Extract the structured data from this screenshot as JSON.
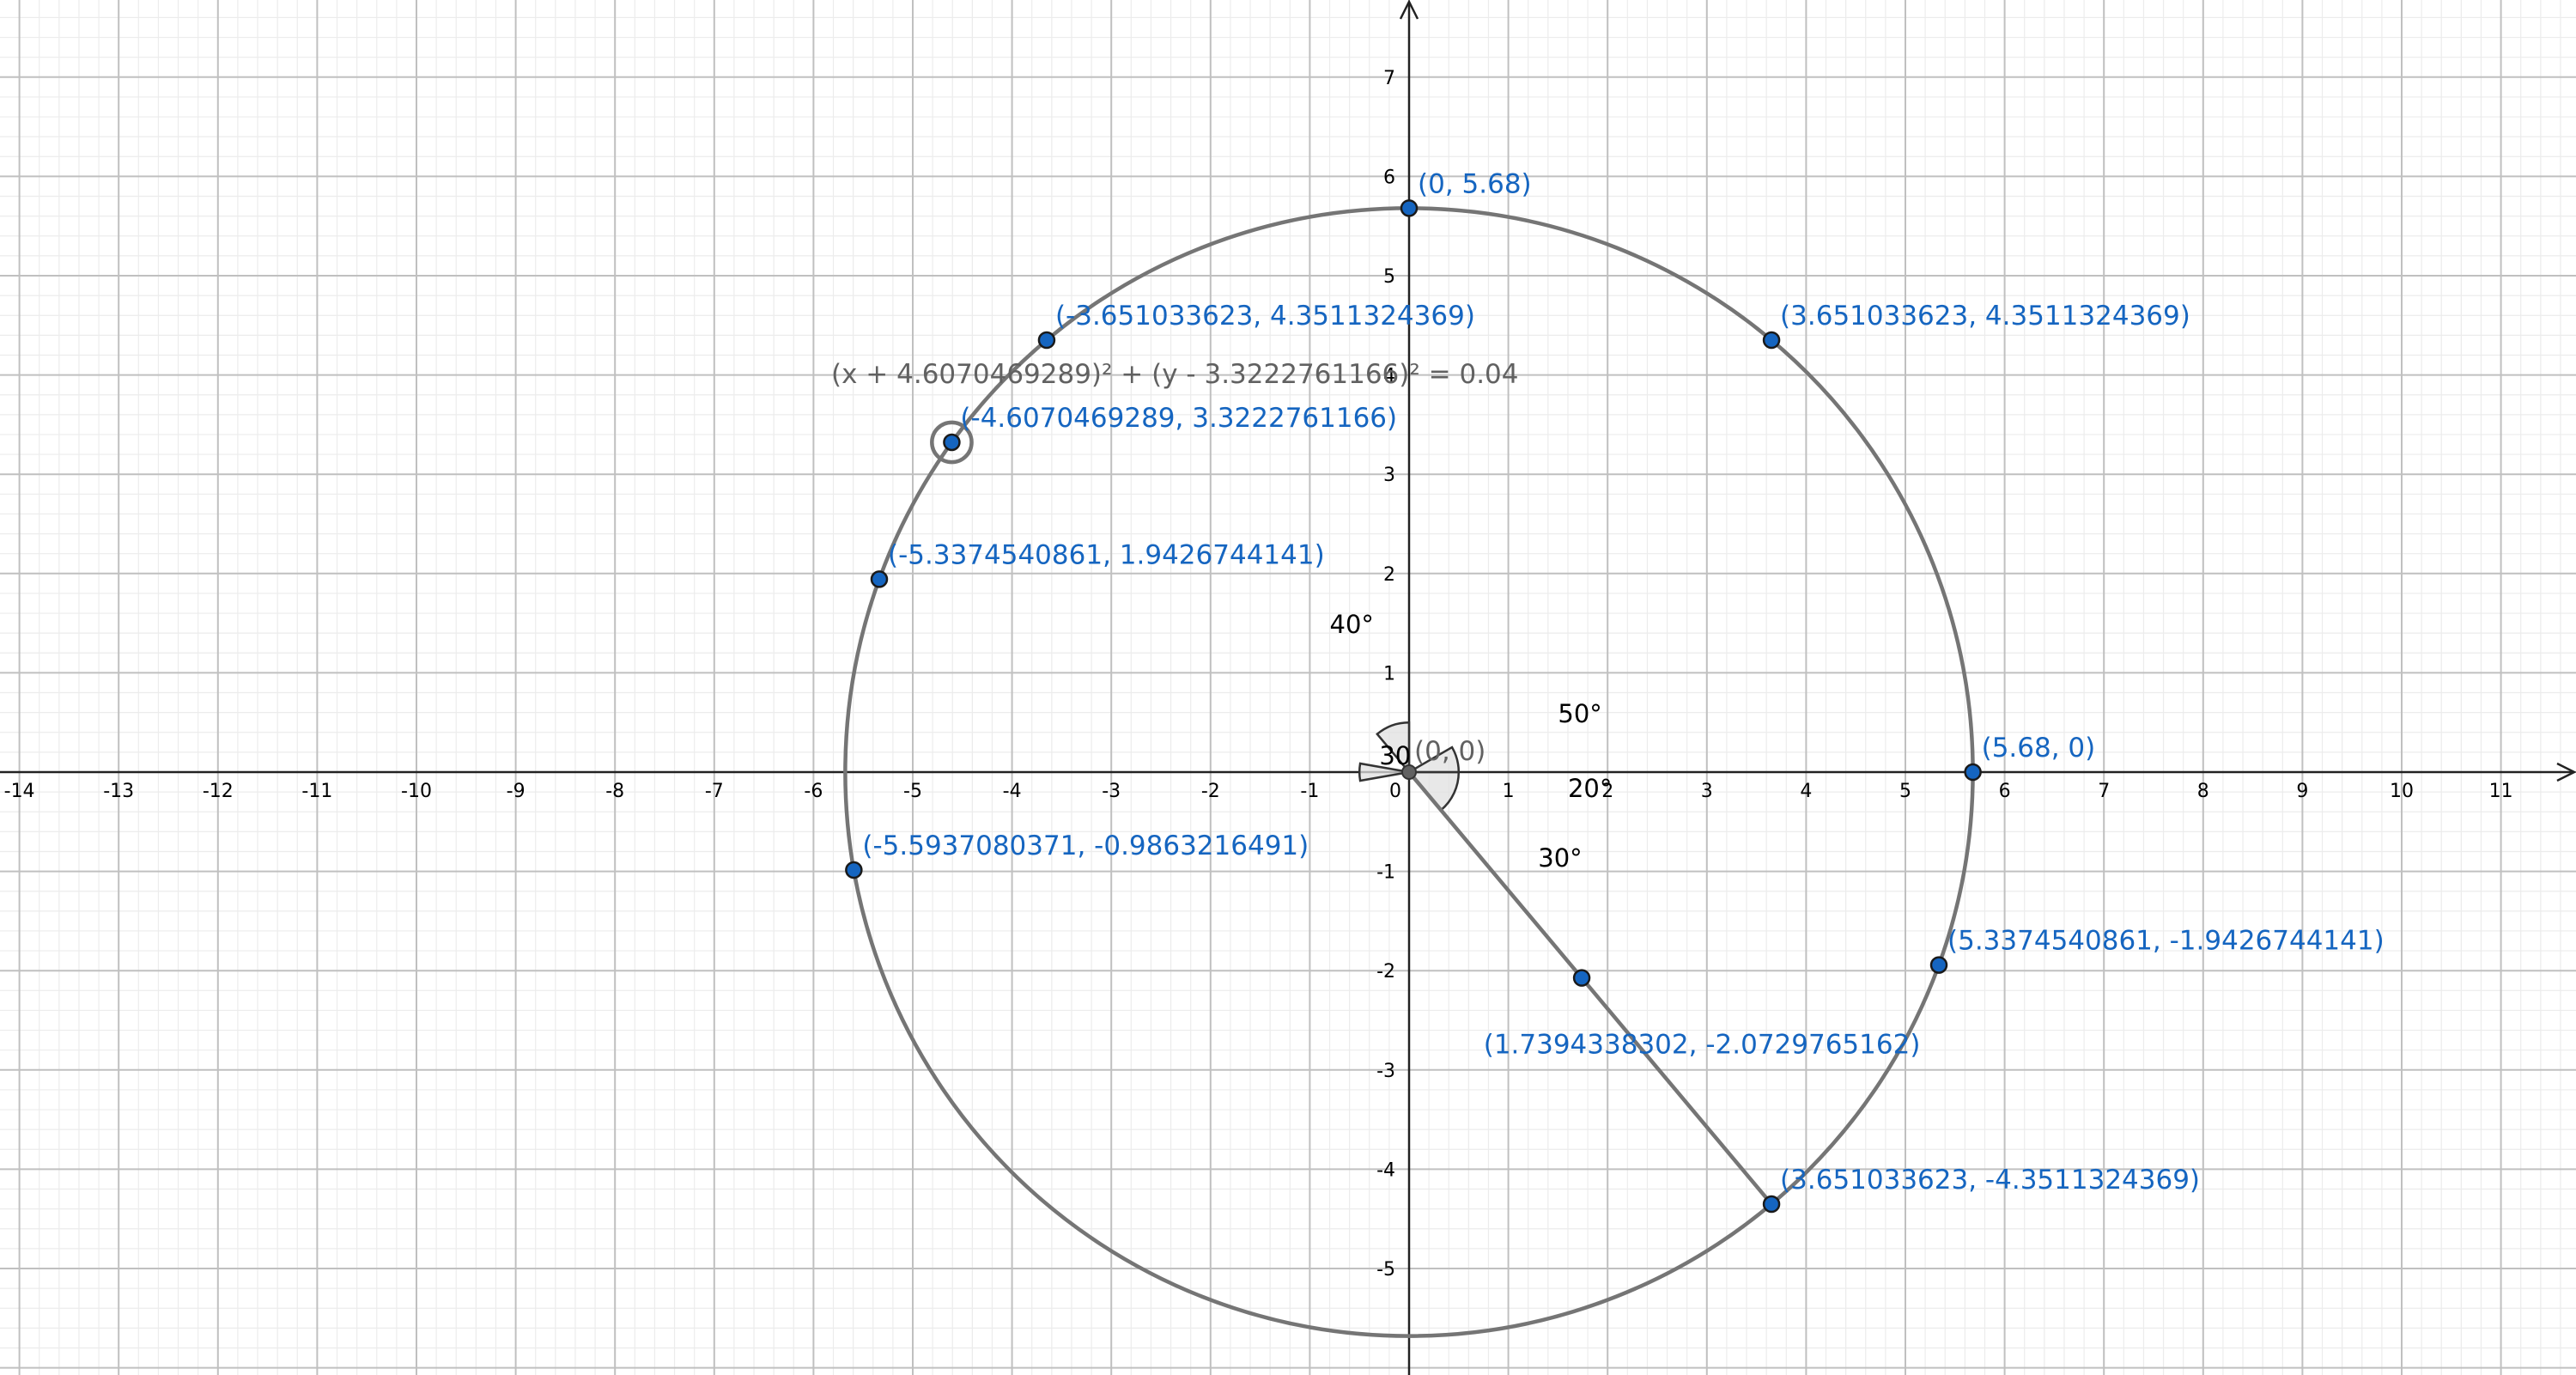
{
  "axes": {
    "x_range": [
      -14.2,
      11.8
    ],
    "y_range": [
      -6.1,
      7.8
    ],
    "x_ticks": [
      "-14",
      "-13",
      "-12",
      "-11",
      "-10",
      "-9",
      "-8",
      "-7",
      "-6",
      "-5",
      "-4",
      "-3",
      "-2",
      "-1",
      "0",
      "1",
      "2",
      "3",
      "4",
      "5",
      "6",
      "7",
      "8",
      "9",
      "10",
      "11"
    ],
    "y_ticks": [
      "-5",
      "-4",
      "-3",
      "-2",
      "-1",
      "1",
      "2",
      "3",
      "4",
      "5",
      "6",
      "7"
    ],
    "grid": true,
    "minor_grid_step": 0.2
  },
  "colors": {
    "point_fill": "#1565c0",
    "point_label": "#1565c0",
    "curve": "#757575",
    "sector_fill": "#e0e0e0",
    "grid_major": "#c0c0c0",
    "grid_minor": "#ececec"
  },
  "circle": {
    "center": [
      0,
      0
    ],
    "radius": 5.68
  },
  "small_circle": {
    "center": [
      -4.6070469289,
      3.3222761166
    ],
    "radius": 0.2,
    "equation": "(x + 4.6070469289)² + (y - 3.3222761166)² = 0.04"
  },
  "origin": {
    "x": 0,
    "y": 0,
    "label": "(0, 0)"
  },
  "segment": {
    "from": [
      0,
      0
    ],
    "to": [
      3.651033623,
      -4.3511324369
    ]
  },
  "points": [
    {
      "x": 0,
      "y": 5.68,
      "label": "(0, 5.68)",
      "anchor": "ne"
    },
    {
      "x": 3.651033623,
      "y": 4.3511324369,
      "label": "(3.651033623, 4.3511324369)",
      "anchor": "ne"
    },
    {
      "x": -3.651033623,
      "y": 4.3511324369,
      "label": "(-3.651033623, 4.3511324369)",
      "anchor": "ne"
    },
    {
      "x": -4.6070469289,
      "y": 3.3222761166,
      "label": "(-4.6070469289, 3.3222761166)",
      "anchor": "ne"
    },
    {
      "x": -5.3374540861,
      "y": 1.9426744141,
      "label": "(-5.3374540861, 1.9426744141)",
      "anchor": "ne"
    },
    {
      "x": -5.5937080371,
      "y": -0.9863216491,
      "label": "(-5.5937080371, -0.9863216491)",
      "anchor": "ne"
    },
    {
      "x": 5.68,
      "y": 0,
      "label": "(5.68, 0)",
      "anchor": "ne"
    },
    {
      "x": 5.3374540861,
      "y": -1.9426744141,
      "label": "(5.3374540861, -1.9426744141)",
      "anchor": "ne"
    },
    {
      "x": 1.7394338302,
      "y": -2.0729765162,
      "label": "(1.7394338302, -2.0729765162)",
      "anchor": "below"
    },
    {
      "x": 3.651033623,
      "y": -4.3511324369,
      "label": "(3.651033623, -4.3511324369)",
      "anchor": "ne"
    }
  ],
  "angle_sectors": [
    {
      "from_deg": -50,
      "to_deg": 0,
      "radius": 0.5
    },
    {
      "from_deg": 0,
      "to_deg": 30,
      "radius": 0.5
    },
    {
      "from_deg": 90,
      "to_deg": 130,
      "radius": 0.5
    },
    {
      "from_deg": 170,
      "to_deg": 190,
      "radius": 0.5
    }
  ],
  "angle_labels": [
    {
      "text": "40°",
      "x": -0.8,
      "y": 1.4
    },
    {
      "text": "50°",
      "x": 1.5,
      "y": 0.5
    },
    {
      "text": "20°",
      "x": 1.6,
      "y": -0.25
    },
    {
      "text": "30°",
      "x": 1.3,
      "y": -0.95
    },
    {
      "text": "30",
      "x": -0.3,
      "y": 0.08
    }
  ]
}
